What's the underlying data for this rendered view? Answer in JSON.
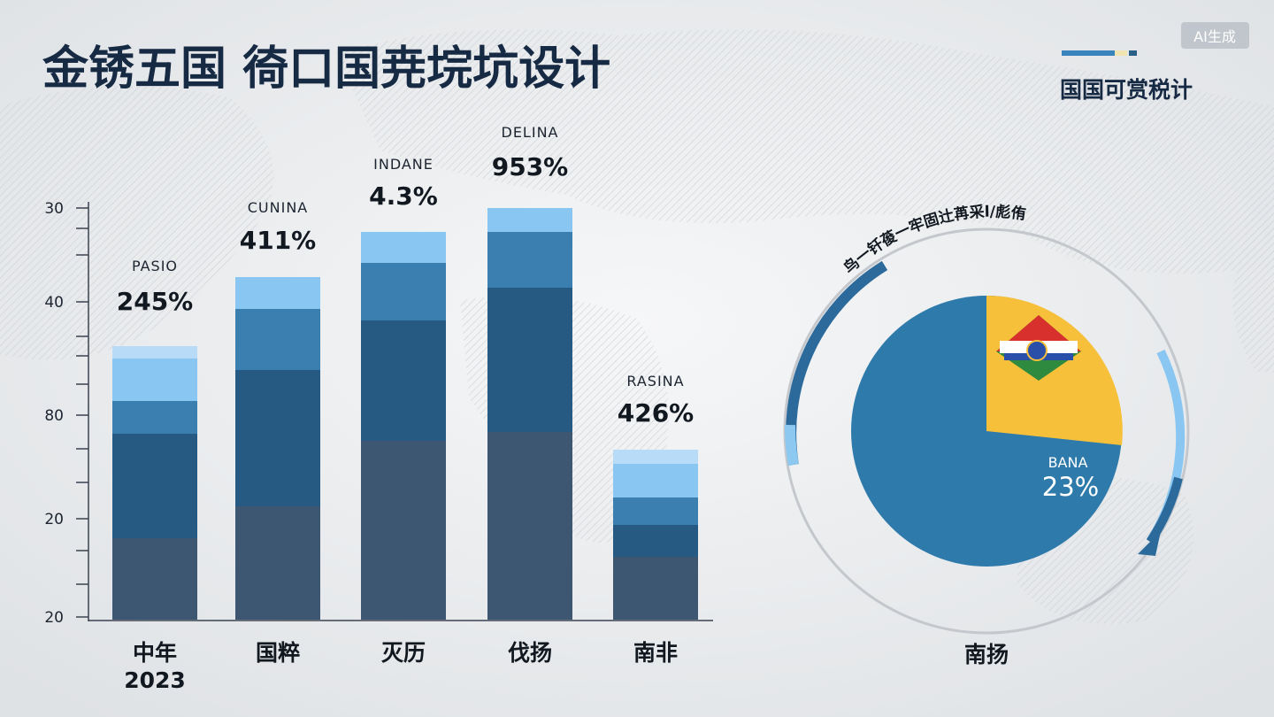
{
  "title": "金锈五国 徛口国尭垸坑设计",
  "badge": "AI生成",
  "legend_label": "国国可赏税计",
  "y_axis_labels": [
    "30",
    "40",
    "80",
    "20",
    "20"
  ],
  "bars": [
    {
      "category": "中年",
      "year": "2023",
      "name": "PASIO",
      "value_label": "245%"
    },
    {
      "category": "国粹",
      "name": "CUNINA",
      "value_label": "411%"
    },
    {
      "category": "灭历",
      "name": "INDANE",
      "value_label": "4.3%"
    },
    {
      "category": "伐扬",
      "name": "DELINA",
      "value_label": "953%"
    },
    {
      "category": "南非",
      "name": "RASINA",
      "value_label": "426%"
    }
  ],
  "pie": {
    "arc_title": "鸟一钎葰一牢固辻苒采l/彪侑",
    "name": "BANA",
    "value_label": "23%",
    "category": "南扬"
  }
}
